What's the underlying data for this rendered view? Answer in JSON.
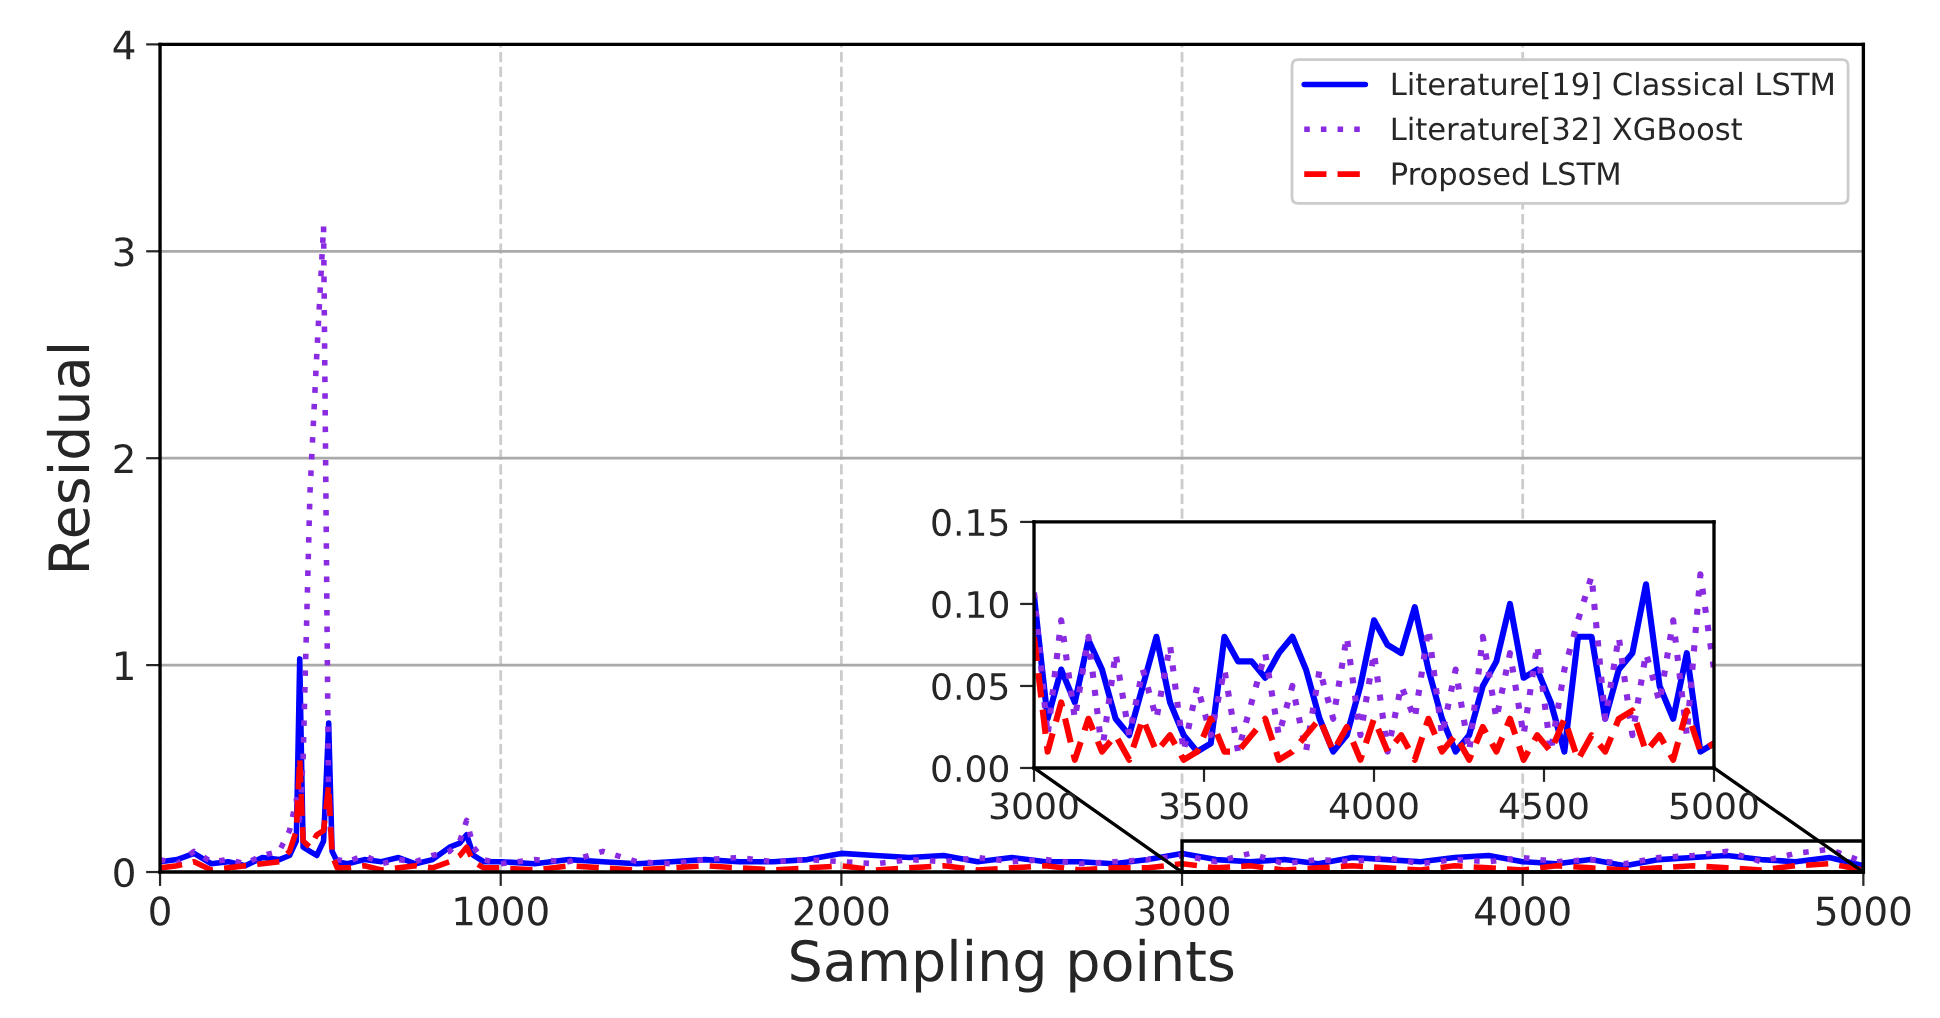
{
  "chart_data": [
    {
      "type": "line",
      "xlabel": "Sampling points",
      "ylabel": "Residual",
      "xlim": [
        0,
        5000
      ],
      "ylim": [
        0,
        4
      ],
      "xticks": [
        0,
        1000,
        2000,
        3000,
        4000,
        5000
      ],
      "yticks": [
        0,
        1,
        2,
        3,
        4
      ],
      "grid": true,
      "legend": "top right",
      "x": [
        0,
        50,
        100,
        150,
        200,
        250,
        300,
        350,
        380,
        400,
        410,
        420,
        440,
        460,
        480,
        495,
        505,
        520,
        550,
        600,
        650,
        700,
        750,
        800,
        850,
        880,
        900,
        920,
        950,
        1000,
        1100,
        1200,
        1300,
        1400,
        1500,
        1600,
        1700,
        1800,
        1900,
        2000,
        2100,
        2200,
        2300,
        2400,
        2500,
        2600,
        2700,
        2800,
        2900,
        3000,
        3100,
        3200,
        3300,
        3400,
        3500,
        3600,
        3700,
        3800,
        3900,
        4000,
        4100,
        4200,
        4300,
        4400,
        4500,
        4600,
        4700,
        4800,
        4900,
        5000
      ],
      "series": [
        {
          "name": "Literature[19] Classical LSTM",
          "color": "#0000ff",
          "line_style": "solid",
          "values": [
            0.05,
            0.06,
            0.09,
            0.04,
            0.05,
            0.03,
            0.07,
            0.06,
            0.08,
            0.15,
            1.03,
            0.12,
            0.1,
            0.08,
            0.15,
            0.72,
            0.1,
            0.05,
            0.04,
            0.06,
            0.05,
            0.07,
            0.04,
            0.06,
            0.12,
            0.14,
            0.18,
            0.08,
            0.05,
            0.05,
            0.04,
            0.06,
            0.05,
            0.04,
            0.05,
            0.06,
            0.05,
            0.05,
            0.06,
            0.09,
            0.08,
            0.07,
            0.08,
            0.05,
            0.07,
            0.05,
            0.05,
            0.04,
            0.06,
            0.09,
            0.06,
            0.05,
            0.06,
            0.04,
            0.07,
            0.06,
            0.05,
            0.07,
            0.08,
            0.05,
            0.04,
            0.06,
            0.03,
            0.06,
            0.07,
            0.08,
            0.06,
            0.05,
            0.07,
            0.03
          ]
        },
        {
          "name": "Literature[32] XGBoost",
          "color": "#8a2be2",
          "line_style": "dotted",
          "values": [
            0.06,
            0.04,
            0.1,
            0.05,
            0.06,
            0.04,
            0.08,
            0.1,
            0.2,
            0.35,
            0.25,
            0.55,
            1.83,
            2.5,
            3.12,
            0.3,
            0.12,
            0.06,
            0.05,
            0.08,
            0.04,
            0.06,
            0.05,
            0.08,
            0.1,
            0.15,
            0.25,
            0.12,
            0.06,
            0.04,
            0.06,
            0.05,
            0.1,
            0.05,
            0.04,
            0.06,
            0.07,
            0.05,
            0.06,
            0.05,
            0.04,
            0.06,
            0.05,
            0.07,
            0.05,
            0.06,
            0.04,
            0.05,
            0.06,
            0.08,
            0.05,
            0.09,
            0.04,
            0.06,
            0.05,
            0.07,
            0.04,
            0.06,
            0.05,
            0.07,
            0.05,
            0.06,
            0.04,
            0.07,
            0.08,
            0.1,
            0.05,
            0.09,
            0.11,
            0.05
          ]
        },
        {
          "name": "Proposed LSTM",
          "color": "#ff0000",
          "line_style": "dashed",
          "values": [
            0.02,
            0.03,
            0.05,
            0.01,
            0.02,
            0.03,
            0.04,
            0.05,
            0.1,
            0.2,
            0.55,
            0.15,
            0.12,
            0.18,
            0.2,
            0.42,
            0.08,
            0.02,
            0.02,
            0.03,
            0.01,
            0.02,
            0.03,
            0.02,
            0.05,
            0.08,
            0.12,
            0.05,
            0.02,
            0.02,
            0.01,
            0.03,
            0.02,
            0.01,
            0.02,
            0.03,
            0.02,
            0.01,
            0.02,
            0.03,
            0.01,
            0.02,
            0.03,
            0.01,
            0.02,
            0.03,
            0.01,
            0.02,
            0.02,
            0.04,
            0.02,
            0.03,
            0.01,
            0.02,
            0.03,
            0.02,
            0.01,
            0.03,
            0.02,
            0.01,
            0.03,
            0.02,
            0.01,
            0.02,
            0.03,
            0.02,
            0.01,
            0.03,
            0.04,
            0.01
          ]
        }
      ]
    },
    {
      "type": "line",
      "xlim": [
        3000,
        5000
      ],
      "ylim": [
        0,
        0.15
      ],
      "xticks": [
        3000,
        3500,
        4000,
        4500,
        5000
      ],
      "yticks": [
        {
          "value": 0,
          "label": "0.00"
        },
        {
          "value": 0.05,
          "label": "0.05"
        },
        {
          "value": 0.1,
          "label": "0.10"
        },
        {
          "value": 0.15,
          "label": "0.15"
        }
      ],
      "x": [
        3000,
        3040,
        3080,
        3120,
        3160,
        3200,
        3240,
        3280,
        3320,
        3360,
        3400,
        3440,
        3480,
        3520,
        3560,
        3600,
        3640,
        3680,
        3720,
        3760,
        3800,
        3840,
        3880,
        3920,
        3960,
        4000,
        4040,
        4080,
        4120,
        4160,
        4200,
        4240,
        4280,
        4320,
        4360,
        4400,
        4440,
        4480,
        4520,
        4560,
        4600,
        4640,
        4680,
        4720,
        4760,
        4800,
        4840,
        4880,
        4920,
        4960,
        5000
      ],
      "series": [
        {
          "color": "#0000ff",
          "line_style": "solid",
          "values": [
            0.105,
            0.03,
            0.06,
            0.04,
            0.078,
            0.06,
            0.03,
            0.02,
            0.05,
            0.08,
            0.04,
            0.02,
            0.01,
            0.015,
            0.08,
            0.065,
            0.065,
            0.055,
            0.07,
            0.08,
            0.06,
            0.03,
            0.01,
            0.02,
            0.05,
            0.09,
            0.075,
            0.07,
            0.098,
            0.06,
            0.03,
            0.01,
            0.02,
            0.05,
            0.065,
            0.1,
            0.055,
            0.06,
            0.04,
            0.01,
            0.08,
            0.08,
            0.03,
            0.06,
            0.07,
            0.112,
            0.05,
            0.03,
            0.07,
            0.01,
            0.015
          ]
        },
        {
          "color": "#8a2be2",
          "line_style": "dotted",
          "values": [
            0.107,
            0.02,
            0.09,
            0.03,
            0.08,
            0.01,
            0.07,
            0.02,
            0.06,
            0.03,
            0.075,
            0.01,
            0.05,
            0.02,
            0.06,
            0.01,
            0.04,
            0.07,
            0.02,
            0.05,
            0.01,
            0.06,
            0.03,
            0.08,
            0.02,
            0.07,
            0.01,
            0.05,
            0.03,
            0.085,
            0.02,
            0.06,
            0.01,
            0.08,
            0.03,
            0.07,
            0.02,
            0.075,
            0.01,
            0.06,
            0.09,
            0.117,
            0.03,
            0.08,
            0.02,
            0.07,
            0.04,
            0.09,
            0.02,
            0.118,
            0.06
          ]
        },
        {
          "color": "#ff0000",
          "line_style": "dashed",
          "values": [
            0.08,
            0.01,
            0.04,
            0.005,
            0.03,
            0.01,
            0.02,
            0.005,
            0.03,
            0.01,
            0.02,
            0.005,
            0.01,
            0.03,
            0.01,
            0.01,
            0.02,
            0.03,
            0.005,
            0.01,
            0.02,
            0.03,
            0.01,
            0.025,
            0.005,
            0.03,
            0.01,
            0.02,
            0.005,
            0.03,
            0.01,
            0.02,
            0.005,
            0.025,
            0.01,
            0.03,
            0.005,
            0.02,
            0.01,
            0.03,
            0.005,
            0.02,
            0.01,
            0.03,
            0.035,
            0.01,
            0.02,
            0.005,
            0.035,
            0.01,
            0.015
          ]
        }
      ]
    }
  ]
}
